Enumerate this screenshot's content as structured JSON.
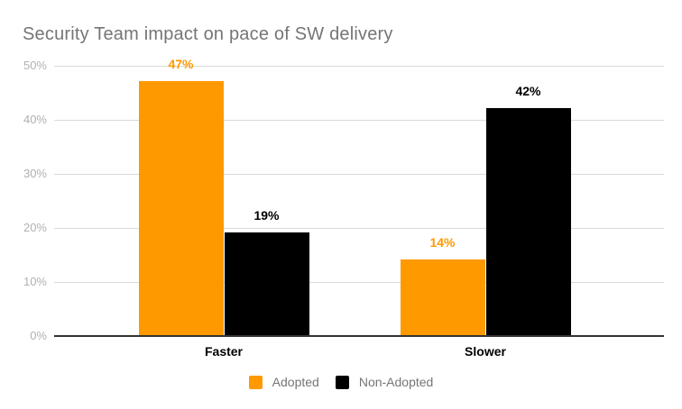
{
  "chart_data": {
    "type": "bar",
    "title": "Security Team impact on pace of SW delivery",
    "categories": [
      "Faster",
      "Slower"
    ],
    "series": [
      {
        "name": "Adopted",
        "color": "#ff9900",
        "values": [
          47,
          14
        ]
      },
      {
        "name": "Non-Adopted",
        "color": "#000000",
        "values": [
          19,
          42
        ]
      }
    ],
    "value_suffix": "%",
    "ylim": [
      0,
      50
    ],
    "ytick_step": 10,
    "ytick_labels": [
      "0%",
      "10%",
      "20%",
      "30%",
      "40%",
      "50%"
    ],
    "grid": true,
    "legend_position": "bottom",
    "colors": {
      "title_text": "#757575",
      "axis_tick_text": "#b0b0b0",
      "gridline": "#d9d9d9",
      "baseline": "#333333",
      "category_text": "#000000",
      "legend_text": "#757575",
      "background": "#ffffff"
    }
  }
}
